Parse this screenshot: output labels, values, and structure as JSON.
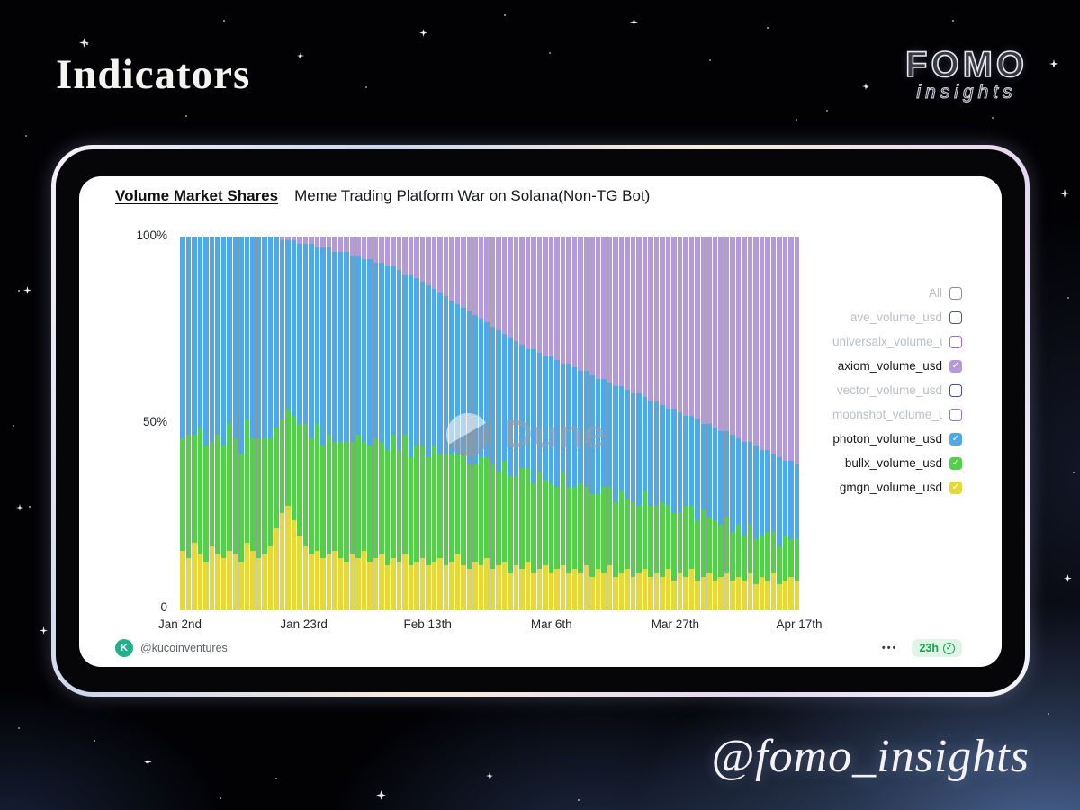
{
  "slide": {
    "title": "Indicators",
    "handle": "@fomo_insights",
    "brand": {
      "name": "FOMO",
      "sub": "insights"
    }
  },
  "card": {
    "header": {
      "title": "Volume Market Shares",
      "subtitle": "Meme Trading Platform War on Solana(Non-TG Bot)"
    },
    "watermark": "Dune",
    "footer": {
      "author": "@kucoinventures",
      "menu": "•••",
      "refresh": "23h"
    },
    "legend": {
      "items": [
        {
          "label": "All",
          "checked": false,
          "box_color": "#8a8f98"
        },
        {
          "label": "ave_volume_usd",
          "checked": false,
          "box_color": "#555b66"
        },
        {
          "label": "universalx_volume_usd",
          "checked": false,
          "box_color": "#a06bd8"
        },
        {
          "label": "axiom_volume_usd",
          "checked": true,
          "box_color": "#b49bd8"
        },
        {
          "label": "vector_volume_usd",
          "checked": false,
          "box_color": "#3f4d9e"
        },
        {
          "label": "moonshot_volume_usd",
          "checked": false,
          "box_color": "#9d6fd0"
        },
        {
          "label": "photon_volume_usd",
          "checked": true,
          "box_color": "#4fa8e8"
        },
        {
          "label": "bullx_volume_usd",
          "checked": true,
          "box_color": "#55cf4b"
        },
        {
          "label": "gmgn_volume_usd",
          "checked": true,
          "box_color": "#e5d83b"
        }
      ]
    }
  },
  "chart_data": {
    "type": "bar",
    "stacked": true,
    "normalized": "percent",
    "title": "Volume Market Shares",
    "subtitle": "Meme Trading Platform War on Solana(Non-TG Bot)",
    "x_ticks": [
      "Jan 2nd",
      "Jan 23rd",
      "Feb 13th",
      "Mar 6th",
      "Mar 27th",
      "Apr 17th"
    ],
    "y_ticks": [
      "0",
      "50%",
      "100%"
    ],
    "ylim": [
      0,
      100
    ],
    "legend_position": "right",
    "series": [
      {
        "name": "gmgn_volume_usd",
        "color": "#e5d83b",
        "values": [
          16,
          14,
          18,
          15,
          13,
          17,
          15,
          14,
          16,
          15,
          13,
          18,
          16,
          14,
          15,
          17,
          22,
          26,
          28,
          24,
          20,
          17,
          15,
          16,
          14,
          15,
          16,
          14,
          13,
          15,
          14,
          16,
          13,
          14,
          15,
          12,
          14,
          13,
          15,
          12,
          13,
          14,
          12,
          13,
          14,
          12,
          13,
          15,
          12,
          11,
          13,
          12,
          14,
          11,
          12,
          13,
          10,
          12,
          11,
          13,
          10,
          11,
          12,
          10,
          11,
          12,
          10,
          11,
          10,
          12,
          9,
          11,
          10,
          12,
          9,
          10,
          11,
          9,
          10,
          11,
          9,
          10,
          9,
          11,
          8,
          10,
          9,
          11,
          8,
          9,
          10,
          8,
          9,
          10,
          8,
          9,
          8,
          10,
          7,
          9,
          8,
          10,
          7,
          8,
          9,
          8
        ]
      },
      {
        "name": "bullx_volume_usd",
        "color": "#55cf4b",
        "values": [
          30,
          33,
          29,
          34,
          31,
          28,
          32,
          30,
          34,
          31,
          29,
          33,
          30,
          32,
          31,
          29,
          27,
          25,
          26,
          28,
          30,
          33,
          31,
          34,
          30,
          32,
          29,
          31,
          32,
          30,
          33,
          29,
          31,
          32,
          30,
          31,
          33,
          30,
          32,
          29,
          31,
          30,
          29,
          31,
          28,
          30,
          29,
          27,
          30,
          28,
          26,
          29,
          27,
          28,
          25,
          27,
          26,
          24,
          27,
          25,
          24,
          26,
          23,
          24,
          22,
          25,
          23,
          22,
          24,
          21,
          22,
          20,
          23,
          21,
          20,
          22,
          19,
          20,
          18,
          21,
          19,
          18,
          20,
          17,
          18,
          16,
          19,
          17,
          16,
          18,
          15,
          16,
          14,
          15,
          13,
          14,
          12,
          13,
          12,
          11,
          13,
          11,
          10,
          12,
          10,
          11
        ]
      },
      {
        "name": "photon_volume_usd",
        "color": "#4fa8e8",
        "values": [
          54,
          53,
          53,
          51,
          56,
          55,
          53,
          56,
          50,
          54,
          58,
          49,
          54,
          54,
          54,
          54,
          51,
          48,
          45,
          47,
          48,
          48,
          52,
          47,
          53,
          50,
          51,
          51,
          51,
          50,
          48,
          49,
          50,
          47,
          48,
          49,
          45,
          48,
          43,
          49,
          45,
          44,
          46,
          42,
          43,
          42,
          41,
          40,
          39,
          41,
          40,
          37,
          36,
          37,
          38,
          34,
          37,
          36,
          33,
          32,
          36,
          32,
          33,
          34,
          34,
          29,
          33,
          32,
          30,
          31,
          32,
          31,
          29,
          28,
          31,
          28,
          29,
          29,
          30,
          25,
          28,
          28,
          26,
          26,
          28,
          27,
          24,
          24,
          27,
          23,
          25,
          25,
          25,
          23,
          26,
          23,
          25,
          22,
          25,
          23,
          22,
          21,
          24,
          20,
          21,
          20
        ]
      },
      {
        "name": "axiom_volume_usd",
        "color": "#b49bd8",
        "values": [
          0,
          0,
          0,
          0,
          0,
          0,
          0,
          0,
          0,
          0,
          0,
          0,
          0,
          0,
          0,
          0,
          0,
          1,
          1,
          1,
          2,
          2,
          2,
          3,
          3,
          3,
          4,
          4,
          4,
          5,
          5,
          6,
          6,
          7,
          7,
          8,
          8,
          9,
          10,
          10,
          11,
          12,
          13,
          14,
          15,
          16,
          17,
          18,
          19,
          20,
          21,
          22,
          23,
          24,
          25,
          26,
          27,
          28,
          29,
          30,
          30,
          31,
          32,
          32,
          33,
          34,
          34,
          35,
          36,
          36,
          37,
          38,
          38,
          39,
          40,
          40,
          41,
          42,
          42,
          43,
          44,
          44,
          45,
          46,
          46,
          47,
          48,
          48,
          49,
          50,
          50,
          51,
          52,
          52,
          53,
          54,
          55,
          55,
          56,
          57,
          57,
          58,
          59,
          60,
          60,
          61
        ]
      }
    ]
  }
}
